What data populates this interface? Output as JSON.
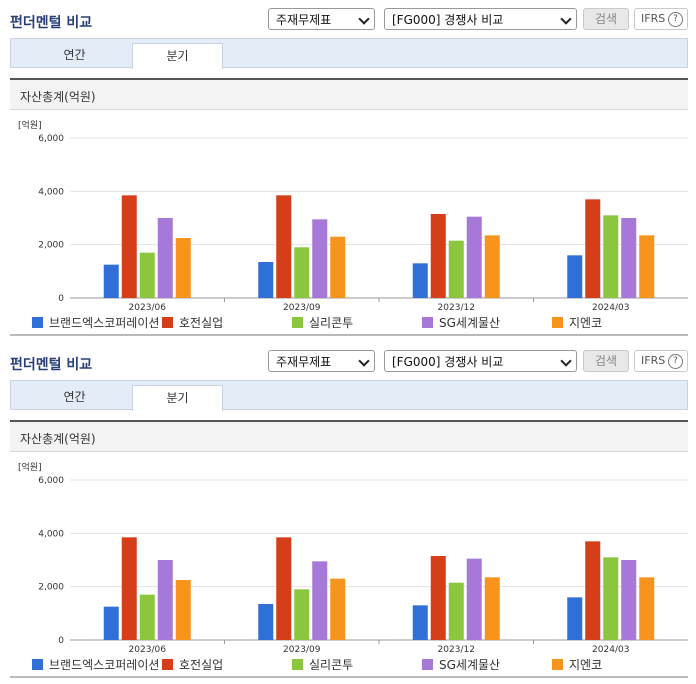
{
  "panels": [
    {
      "title": "펀더멘털 비교",
      "select_type": "주재무제표",
      "select_compare": "[FG000] 경쟁사 비교",
      "search_label": "검색",
      "ifrs_label": "IFRS",
      "help_glyph": "?",
      "tabs": [
        "연간",
        "분기"
      ],
      "active_tab": "분기",
      "chart_title": "자산총계(억원)"
    },
    {
      "title": "펀더멘털 비교",
      "select_type": "주재무제표",
      "select_compare": "[FG000] 경쟁사 비교",
      "search_label": "검색",
      "ifrs_label": "IFRS",
      "help_glyph": "?",
      "tabs": [
        "연간",
        "분기"
      ],
      "active_tab": "분기",
      "chart_title": "자산총계(억원)"
    }
  ],
  "chart_data": [
    {
      "type": "bar",
      "unit_label": "[억원]",
      "categories": [
        "2023/06",
        "2023/09",
        "2023/12",
        "2024/03"
      ],
      "ylim": [
        0,
        6000
      ],
      "yticks": [
        "0",
        "2,000",
        "4,000",
        "6,000"
      ],
      "grid": true,
      "legend": "bottom",
      "series": [
        {
          "name": "브랜드엑스코퍼레이션",
          "color": "#2f6fd6",
          "values": [
            1250,
            1350,
            1300,
            1600
          ]
        },
        {
          "name": "호전실업",
          "color": "#d43f1a",
          "values": [
            3850,
            3850,
            3150,
            3700
          ]
        },
        {
          "name": "실리콘투",
          "color": "#8cc63f",
          "values": [
            1700,
            1900,
            2150,
            3100
          ]
        },
        {
          "name": "SG세계물산",
          "color": "#a678d8",
          "values": [
            3000,
            2950,
            3050,
            3000
          ]
        },
        {
          "name": "지엔코",
          "color": "#f7941d",
          "values": [
            2250,
            2300,
            2350,
            2350
          ]
        }
      ]
    },
    {
      "type": "bar",
      "unit_label": "[억원]",
      "categories": [
        "2023/06",
        "2023/09",
        "2023/12",
        "2024/03"
      ],
      "ylim": [
        0,
        6000
      ],
      "yticks": [
        "0",
        "2,000",
        "4,000",
        "6,000"
      ],
      "grid": true,
      "legend": "bottom",
      "series": [
        {
          "name": "브랜드엑스코퍼레이션",
          "color": "#2f6fd6",
          "values": [
            1250,
            1350,
            1300,
            1600
          ]
        },
        {
          "name": "호전실업",
          "color": "#d43f1a",
          "values": [
            3850,
            3850,
            3150,
            3700
          ]
        },
        {
          "name": "실리콘투",
          "color": "#8cc63f",
          "values": [
            1700,
            1900,
            2150,
            3100
          ]
        },
        {
          "name": "SG세계물산",
          "color": "#a678d8",
          "values": [
            3000,
            2950,
            3050,
            3000
          ]
        },
        {
          "name": "지엔코",
          "color": "#f7941d",
          "values": [
            2250,
            2300,
            2350,
            2350
          ]
        }
      ]
    }
  ]
}
